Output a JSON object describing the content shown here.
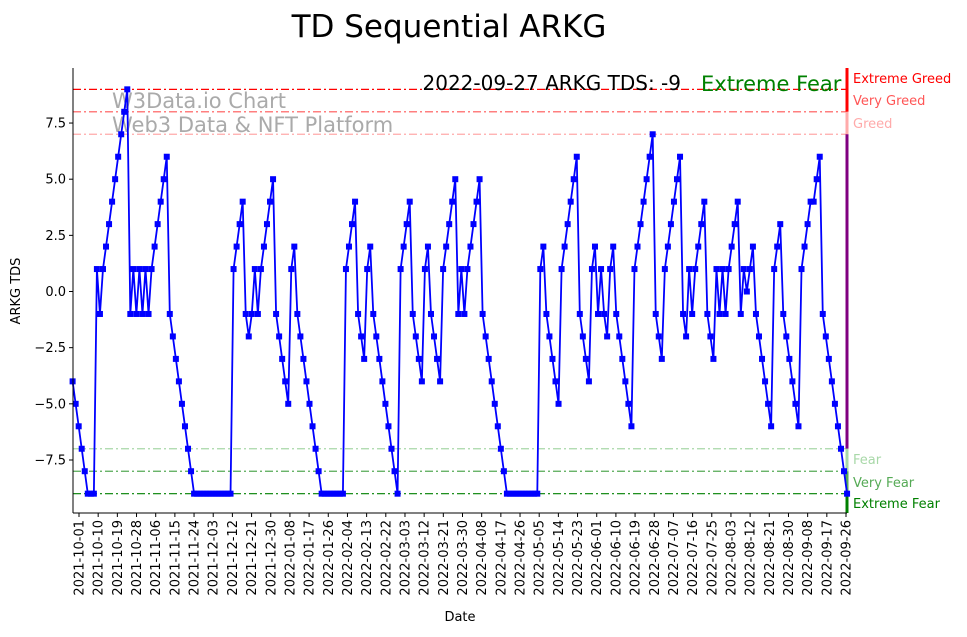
{
  "chart_data": {
    "type": "line",
    "title": "TD Sequential ARKG",
    "xlabel": "Date",
    "ylabel": "ARKG TDS",
    "annotation": "2022-09-27 ARKG TDS: -9",
    "status_label": "Extreme Fear",
    "watermark": [
      "W3Data.io Chart",
      "Web3 Data & NFT Platform"
    ],
    "ylim": [
      -9.86,
      9.95
    ],
    "yticks": [
      -7.5,
      -5.0,
      -2.5,
      0.0,
      2.5,
      5.0,
      7.5
    ],
    "ytick_labels": [
      "−7.5",
      "−5.0",
      "−2.5",
      "0.0",
      "2.5",
      "5.0",
      "7.5"
    ],
    "x_base_date": "2021-10-01",
    "x_range_days": [
      -3,
      360.5
    ],
    "xtick_days": [
      0,
      9,
      18,
      27,
      36,
      45,
      54,
      63,
      72,
      81,
      90,
      99,
      108,
      117,
      126,
      135,
      144,
      153,
      162,
      171,
      180,
      189,
      198,
      207,
      216,
      225,
      234,
      243,
      252,
      261,
      270,
      279,
      288,
      297,
      306,
      315,
      324,
      333,
      342,
      351,
      360
    ],
    "xtick_labels": [
      "2021-10-01",
      "2021-10-10",
      "2021-10-19",
      "2021-10-28",
      "2021-11-06",
      "2021-11-15",
      "2021-11-24",
      "2021-12-03",
      "2021-12-12",
      "2021-12-21",
      "2021-12-30",
      "2022-01-08",
      "2022-01-17",
      "2022-01-26",
      "2022-02-04",
      "2022-02-13",
      "2022-02-22",
      "2022-03-03",
      "2022-03-12",
      "2022-03-21",
      "2022-03-30",
      "2022-04-08",
      "2022-04-17",
      "2022-04-26",
      "2022-05-05",
      "2022-05-14",
      "2022-05-23",
      "2022-06-01",
      "2022-06-10",
      "2022-06-19",
      "2022-06-28",
      "2022-07-07",
      "2022-07-16",
      "2022-07-25",
      "2022-08-03",
      "2022-08-12",
      "2022-08-21",
      "2022-08-30",
      "2022-09-08",
      "2022-09-17",
      "2022-09-26"
    ],
    "series": [
      {
        "name": "ARKG TDS",
        "color": "#0000ff",
        "values": [
          -4,
          -5,
          -6,
          -7,
          -8,
          -9,
          -9,
          -9,
          1,
          -1,
          1,
          2,
          3,
          4,
          5,
          6,
          7,
          8,
          9,
          -1,
          1,
          -1,
          1,
          -1,
          1,
          -1,
          1,
          2,
          3,
          4,
          5,
          6,
          -1,
          -2,
          -3,
          -4,
          -5,
          -6,
          -7,
          -8,
          -9,
          -9,
          -9,
          -9,
          -9,
          -9,
          -9,
          -9,
          -9,
          -9,
          -9,
          -9,
          -9,
          1,
          2,
          3,
          4,
          -1,
          -2,
          -1,
          1,
          -1,
          1,
          2,
          3,
          4,
          5,
          -1,
          -2,
          -3,
          -4,
          -5,
          1,
          2,
          -1,
          -2,
          -3,
          -4,
          -5,
          -6,
          -7,
          -8,
          -9,
          -9,
          -9,
          -9,
          -9,
          -9,
          -9,
          -9,
          1,
          2,
          3,
          4,
          -1,
          -2,
          -3,
          1,
          2,
          -1,
          -2,
          -3,
          -4,
          -5,
          -6,
          -7,
          -8,
          -9,
          1,
          2,
          3,
          4,
          -1,
          -2,
          -3,
          -4,
          1,
          2,
          -1,
          -2,
          -3,
          -4,
          1,
          2,
          3,
          4,
          5,
          -1,
          1,
          -1,
          1,
          2,
          3,
          4,
          5,
          -1,
          -2,
          -3,
          -4,
          -5,
          -6,
          -7,
          -8,
          -9,
          -9,
          -9,
          -9,
          -9,
          -9,
          -9,
          -9,
          -9,
          -9,
          -9,
          1,
          2,
          -1,
          -2,
          -3,
          -4,
          -5,
          1,
          2,
          3,
          4,
          5,
          6,
          -1,
          -2,
          -3,
          -4,
          1,
          2,
          -1,
          1,
          -1,
          -2,
          1,
          2,
          -1,
          -2,
          -3,
          -4,
          -5,
          -6,
          1,
          2,
          3,
          4,
          5,
          6,
          7,
          -1,
          -2,
          -3,
          1,
          2,
          3,
          4,
          5,
          6,
          -1,
          -2,
          1,
          -1,
          1,
          2,
          3,
          4,
          -1,
          -2,
          -3,
          1,
          -1,
          1,
          -1,
          1,
          2,
          3,
          4,
          -1,
          1,
          0,
          1,
          2,
          -1,
          -2,
          -3,
          -4,
          -5,
          -6,
          1,
          2,
          3,
          -1,
          -2,
          -3,
          -4,
          -5,
          -6,
          1,
          2,
          3,
          4,
          4,
          5,
          6,
          -1,
          -2,
          -3,
          -4,
          -5,
          -6,
          -7,
          -8,
          -9
        ]
      }
    ],
    "levels": [
      {
        "value": 9,
        "label": "Extreme Greed",
        "color": "#ff0000"
      },
      {
        "value": 8,
        "label": "Very Greed",
        "color": "#ff5555"
      },
      {
        "value": 7,
        "label": "Greed",
        "color": "#ffaaaa"
      },
      {
        "value": -7,
        "label": "Fear",
        "color": "#a8d8a8"
      },
      {
        "value": -8,
        "label": "Very Fear",
        "color": "#55aa55"
      },
      {
        "value": -9,
        "label": "Extreme Fear",
        "color": "#008000"
      }
    ],
    "neutral_color": "#800080"
  }
}
